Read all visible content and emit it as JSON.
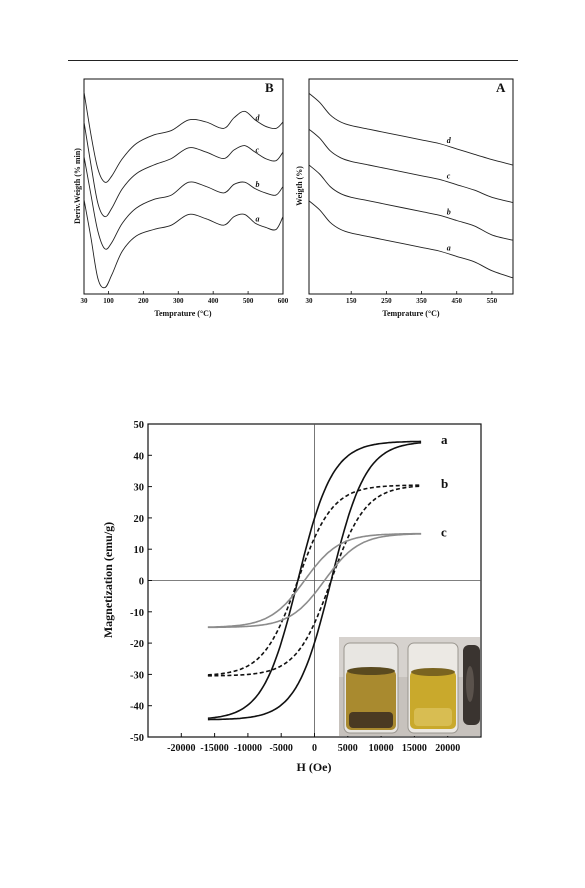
{
  "chart_data": [
    {
      "panel": "B",
      "type": "line",
      "xlabel": "Temprature (°C)",
      "ylabel": "Deriv.Weigth (% min)",
      "xticks": [
        30,
        100,
        200,
        300,
        400,
        500,
        600
      ],
      "xlim": [
        30,
        600
      ],
      "series": [
        {
          "name": "a",
          "x": [
            30,
            50,
            70,
            90,
            110,
            140,
            180,
            230,
            280,
            330,
            380,
            430,
            460,
            490,
            520,
            550,
            580,
            600
          ],
          "y": [
            2.2,
            1.3,
            0.35,
            0.15,
            0.45,
            1.0,
            1.35,
            1.5,
            1.6,
            1.85,
            1.75,
            1.6,
            1.8,
            1.85,
            1.65,
            1.55,
            1.5,
            1.8
          ]
        },
        {
          "name": "b",
          "x": [
            30,
            50,
            70,
            90,
            110,
            140,
            180,
            230,
            280,
            330,
            380,
            430,
            460,
            490,
            520,
            550,
            580,
            600
          ],
          "y": [
            3.2,
            2.3,
            1.45,
            1.05,
            1.2,
            1.65,
            2.0,
            2.2,
            2.3,
            2.6,
            2.5,
            2.35,
            2.55,
            2.6,
            2.45,
            2.35,
            2.3,
            2.5
          ]
        },
        {
          "name": "c",
          "x": [
            30,
            50,
            70,
            90,
            110,
            140,
            180,
            230,
            280,
            330,
            380,
            430,
            460,
            490,
            520,
            550,
            580,
            600
          ],
          "y": [
            4.0,
            3.0,
            2.1,
            1.8,
            2.0,
            2.45,
            2.8,
            3.0,
            3.15,
            3.4,
            3.3,
            3.15,
            3.35,
            3.45,
            3.3,
            3.15,
            3.1,
            3.3
          ]
        },
        {
          "name": "d",
          "x": [
            30,
            50,
            70,
            90,
            110,
            140,
            180,
            230,
            280,
            330,
            380,
            430,
            460,
            490,
            520,
            550,
            580,
            600
          ],
          "y": [
            4.7,
            3.7,
            2.9,
            2.6,
            2.75,
            3.15,
            3.5,
            3.7,
            3.8,
            4.05,
            4.0,
            3.85,
            4.1,
            4.25,
            4.05,
            3.9,
            3.85,
            4.0
          ]
        }
      ],
      "ylim": [
        0,
        5
      ]
    },
    {
      "panel": "A",
      "type": "line",
      "xlabel": "Temprature (°C)",
      "ylabel": "Weigth (%)",
      "xticks": [
        30,
        150,
        250,
        350,
        450,
        550
      ],
      "xlim": [
        30,
        610
      ],
      "series": [
        {
          "name": "a",
          "x": [
            30,
            60,
            90,
            120,
            150,
            200,
            250,
            300,
            350,
            400,
            450,
            500,
            550,
            610
          ],
          "y": [
            1.6,
            1.35,
            1.0,
            0.8,
            0.7,
            0.6,
            0.5,
            0.4,
            0.3,
            0.2,
            0.05,
            -0.1,
            -0.35,
            -0.55
          ]
        },
        {
          "name": "b",
          "x": [
            30,
            60,
            90,
            120,
            150,
            200,
            250,
            300,
            350,
            400,
            450,
            500,
            550,
            610
          ],
          "y": [
            2.6,
            2.35,
            2.0,
            1.8,
            1.7,
            1.6,
            1.5,
            1.4,
            1.3,
            1.2,
            1.05,
            0.9,
            0.65,
            0.5
          ]
        },
        {
          "name": "c",
          "x": [
            30,
            60,
            90,
            120,
            150,
            200,
            250,
            300,
            350,
            400,
            450,
            500,
            550,
            610
          ],
          "y": [
            3.6,
            3.35,
            3.0,
            2.8,
            2.7,
            2.6,
            2.5,
            2.4,
            2.3,
            2.2,
            2.05,
            1.9,
            1.7,
            1.55
          ]
        },
        {
          "name": "d",
          "x": [
            30,
            60,
            90,
            120,
            150,
            200,
            250,
            300,
            350,
            400,
            450,
            500,
            550,
            610
          ],
          "y": [
            4.6,
            4.35,
            4.0,
            3.8,
            3.7,
            3.6,
            3.5,
            3.4,
            3.3,
            3.2,
            3.05,
            2.9,
            2.75,
            2.6
          ]
        }
      ],
      "ylim": [
        -1,
        5
      ]
    },
    {
      "type": "line",
      "xlabel": "H (Oe)",
      "ylabel": "Magnetization (emu/g)",
      "xticks": [
        -20000,
        -15000,
        -10000,
        -5000,
        0,
        5000,
        10000,
        15000,
        20000
      ],
      "yticks": [
        -50,
        -40,
        -30,
        -20,
        -10,
        0,
        10,
        20,
        30,
        40,
        50
      ],
      "xlim": [
        -25000,
        25000
      ],
      "ylim": [
        -50,
        50
      ],
      "series": [
        {
          "name": "a",
          "style": "solid",
          "color": "#111111",
          "Ms": 44.5,
          "Hc": 2500,
          "Hmax": 16000
        },
        {
          "name": "b",
          "style": "dashed",
          "color": "#111111",
          "Ms": 30.5,
          "Hc": 2500,
          "Hmax": 16000
        },
        {
          "name": "c",
          "style": "solid",
          "color": "#8c8c8c",
          "Ms": 15.0,
          "Hc": 1500,
          "Hmax": 16000
        }
      ]
    }
  ],
  "panels": {
    "B": {
      "letter": "B",
      "ylabel": "Deriv.Weigth (% min)",
      "xlabel": "Temprature (°C)",
      "xtick_labels": [
        "30",
        "100",
        "200",
        "300",
        "400",
        "500",
        "600"
      ],
      "curve_labels": [
        "a",
        "b",
        "c",
        "d"
      ]
    },
    "A": {
      "letter": "A",
      "ylabel": "Weigth (%)",
      "xlabel": "Temprature (°C)",
      "xtick_labels": [
        "30",
        "150",
        "250",
        "350",
        "450",
        "550"
      ],
      "curve_labels": [
        "a",
        "b",
        "c",
        "d"
      ]
    },
    "M": {
      "ylabel": "Magnetization (emu/g)",
      "xlabel": "H (Oe)",
      "ytick_labels": [
        "50",
        "40",
        "30",
        "20",
        "10",
        "0",
        "-10",
        "-20",
        "-30",
        "-40",
        "-50"
      ],
      "xtick_labels": [
        "-20000",
        "-15000",
        "-10000",
        "-5000",
        "0",
        "5000",
        "10000",
        "15000",
        "20000"
      ],
      "curve_labels": [
        "a",
        "b",
        "c"
      ]
    }
  }
}
